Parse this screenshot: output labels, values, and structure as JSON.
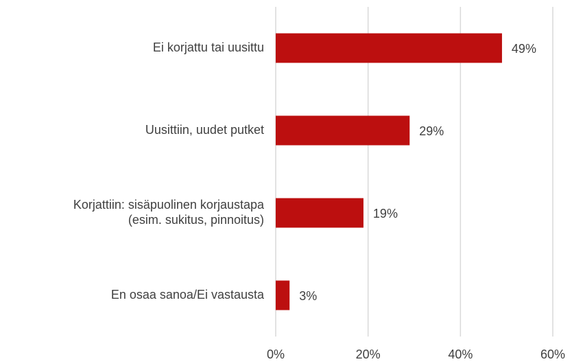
{
  "chart_data": {
    "type": "hbar",
    "categories": [
      "Ei korjattu tai uusittu",
      "Uusittiin, uudet putket",
      "Korjattiin: sisäpuolinen korjaustapa\n(esim. sukitus, pinnoitus)",
      "En osaa sanoa/Ei vastausta"
    ],
    "values": [
      49,
      29,
      19,
      3
    ],
    "value_labels": [
      "49%",
      "29%",
      "19%",
      "3%"
    ],
    "color": "#bc0f0f",
    "xlim": [
      0,
      60
    ],
    "xticks": [
      {
        "value": 0,
        "label": "0%"
      },
      {
        "value": 20,
        "label": "20%"
      },
      {
        "value": 40,
        "label": "40%"
      },
      {
        "value": 60,
        "label": "60%"
      }
    ],
    "grid": true
  }
}
